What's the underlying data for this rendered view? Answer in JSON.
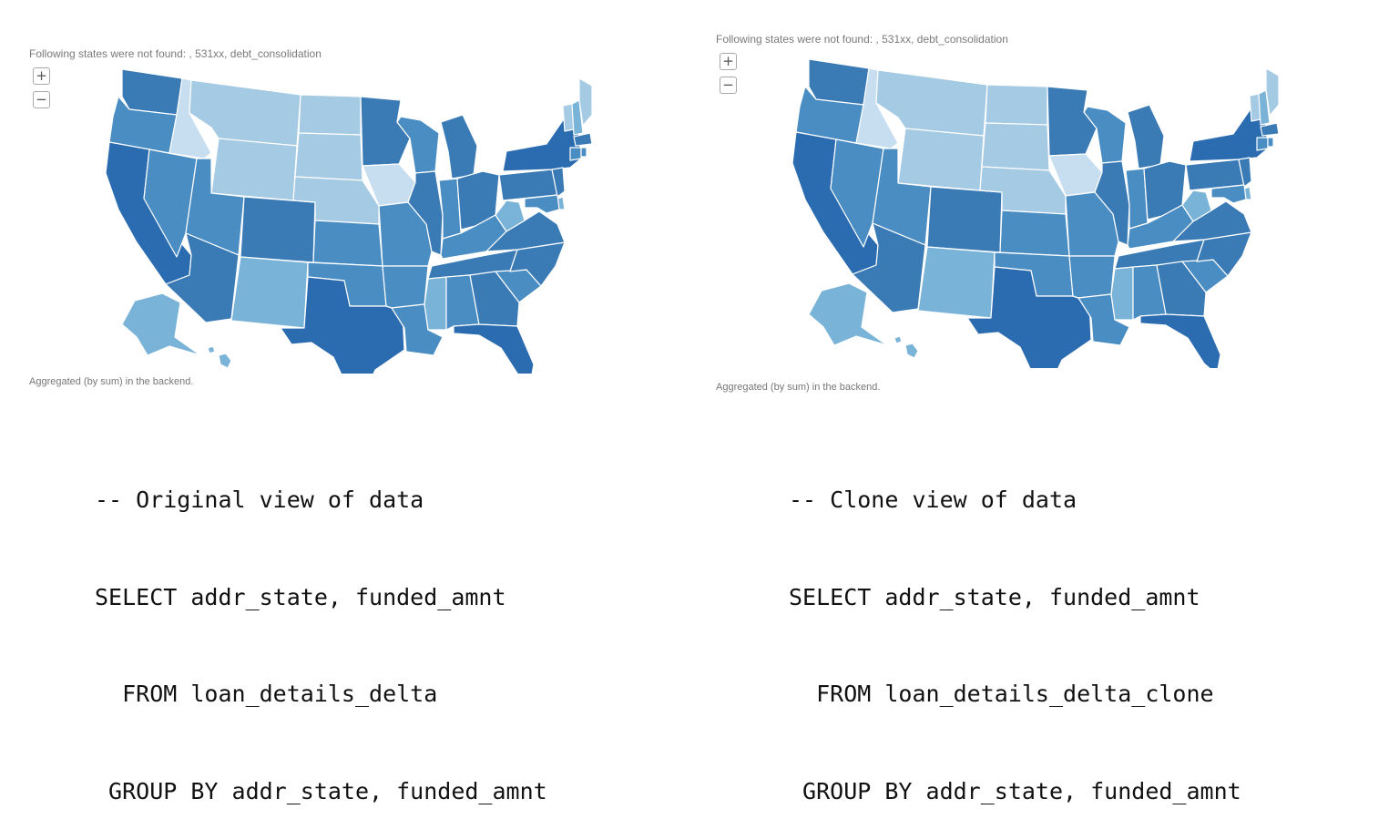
{
  "panels": [
    {
      "notice": "Following states were not found: , 531xx, debt_consolidation",
      "zoom_in": "+",
      "zoom_out": "−",
      "footer": "Aggregated (by sum) in the backend.",
      "sql": [
        "-- Original view of data",
        "SELECT addr_state, funded_amnt",
        "  FROM loan_details_delta",
        " GROUP BY addr_state, funded_amnt"
      ]
    },
    {
      "notice": "Following states were not found: , 531xx, debt_consolidation",
      "zoom_in": "+",
      "zoom_out": "−",
      "footer": "Aggregated (by sum) in the backend.",
      "sql": [
        "-- Clone view of data",
        "SELECT addr_state, funded_amnt",
        "  FROM loan_details_delta_clone",
        " GROUP BY addr_state, funded_amnt"
      ]
    }
  ],
  "colors": {
    "darkest": "#2b6cb0",
    "dark": "#3a7ab5",
    "mid": "#4a8dc3",
    "light": "#7ab3d8",
    "lighter": "#a5cae3",
    "lightest": "#c6def0"
  },
  "state_shading": {
    "WA": "dark",
    "OR": "mid",
    "CA": "darkest",
    "NV": "mid",
    "ID": "lightest",
    "MT": "lighter",
    "WY": "lighter",
    "UT": "mid",
    "AZ": "dark",
    "CO": "dark",
    "NM": "light",
    "ND": "lighter",
    "SD": "lighter",
    "NE": "lighter",
    "KS": "mid",
    "OK": "mid",
    "TX": "darkest",
    "MN": "dark",
    "IA": "lightest",
    "MO": "mid",
    "AR": "mid",
    "LA": "mid",
    "WI": "mid",
    "IL": "dark",
    "MI": "dark",
    "IN": "mid",
    "OH": "dark",
    "KY": "mid",
    "TN": "dark",
    "MS": "light",
    "AL": "mid",
    "GA": "dark",
    "FL": "darkest",
    "SC": "mid",
    "NC": "dark",
    "VA": "dark",
    "WV": "light",
    "PA": "dark",
    "NY": "darkest",
    "VT": "lighter",
    "NH": "light",
    "ME": "lighter",
    "MA": "dark",
    "CT": "mid",
    "RI": "mid",
    "NJ": "dark",
    "DE": "light",
    "MD": "mid",
    "AK": "light",
    "HI": "light"
  }
}
